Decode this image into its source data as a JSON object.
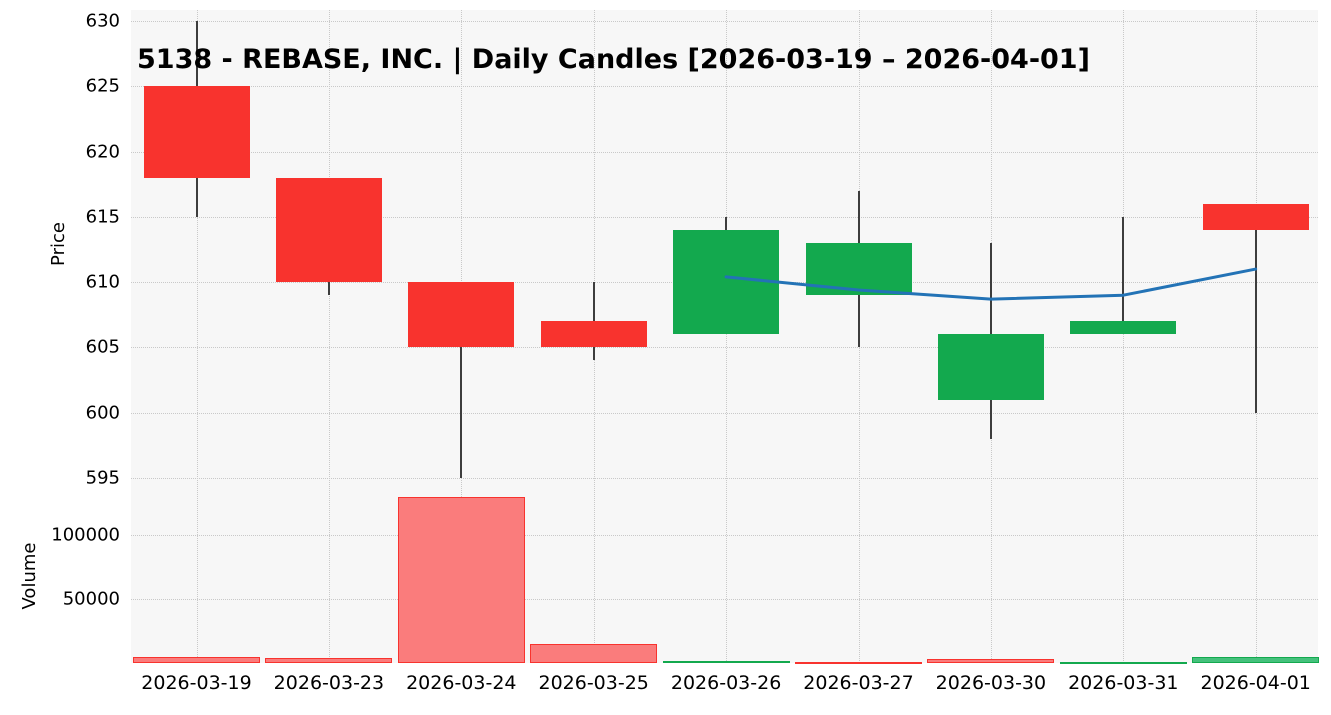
{
  "chart_data": {
    "type": "candlestick",
    "title": "5138 - REBASE, INC. | Daily Candles [2026-03-19 – 2026-04-01]",
    "price_axis": {
      "label": "Price",
      "ticks": [
        630,
        625,
        620,
        615,
        610,
        605,
        600,
        595
      ],
      "range": [
        595,
        630
      ]
    },
    "volume_axis": {
      "label": "Volume",
      "ticks": [
        100000,
        50000
      ],
      "range": [
        0,
        133000
      ]
    },
    "categories": [
      "2026-03-19",
      "2026-03-23",
      "2026-03-24",
      "2026-03-25",
      "2026-03-26",
      "2026-03-27",
      "2026-03-30",
      "2026-03-31",
      "2026-04-01"
    ],
    "series": [
      {
        "name": "ohlc",
        "candles": [
          {
            "date": "2026-03-19",
            "open": 625,
            "high": 630,
            "low": 615,
            "close": 618,
            "direction": "down"
          },
          {
            "date": "2026-03-23",
            "open": 618,
            "high": 618,
            "low": 609,
            "close": 610,
            "direction": "down"
          },
          {
            "date": "2026-03-24",
            "open": 610,
            "high": 610,
            "low": 595,
            "close": 605,
            "direction": "down"
          },
          {
            "date": "2026-03-25",
            "open": 607,
            "high": 610,
            "low": 604,
            "close": 605,
            "direction": "down"
          },
          {
            "date": "2026-03-26",
            "open": 606,
            "high": 615,
            "low": 606,
            "close": 614,
            "direction": "up"
          },
          {
            "date": "2026-03-27",
            "open": 609,
            "high": 617,
            "low": 605,
            "close": 613,
            "direction": "up"
          },
          {
            "date": "2026-03-30",
            "open": 601,
            "high": 613,
            "low": 598,
            "close": 606,
            "direction": "up"
          },
          {
            "date": "2026-03-31",
            "open": 606,
            "high": 615,
            "low": 606,
            "close": 607,
            "direction": "up"
          },
          {
            "date": "2026-04-01",
            "open": 616,
            "high": 616,
            "low": 600,
            "close": 614,
            "direction": "down"
          }
        ]
      },
      {
        "name": "volume",
        "values": [
          4500,
          4000,
          130000,
          15000,
          1500,
          1000,
          3000,
          800,
          4500
        ],
        "directions": [
          "down",
          "down",
          "down",
          "down",
          "up",
          "down",
          "down",
          "up",
          "up"
        ]
      },
      {
        "name": "moving_average",
        "start_index": 4,
        "values": [
          610.4,
          609.4,
          608.7,
          609,
          611
        ]
      }
    ],
    "grid": "dotted",
    "legend": "none",
    "colors": {
      "up": "#13a94e",
      "down": "#f8332e",
      "volume_up_fill": "#45c17c",
      "volume_down_fill": "#fa7c7c",
      "ma_line": "#2373b6",
      "wick": "#3d3d3d",
      "grid": "#c9c9c9",
      "plot_background": "#f7f7f7",
      "text": "#000000"
    }
  }
}
